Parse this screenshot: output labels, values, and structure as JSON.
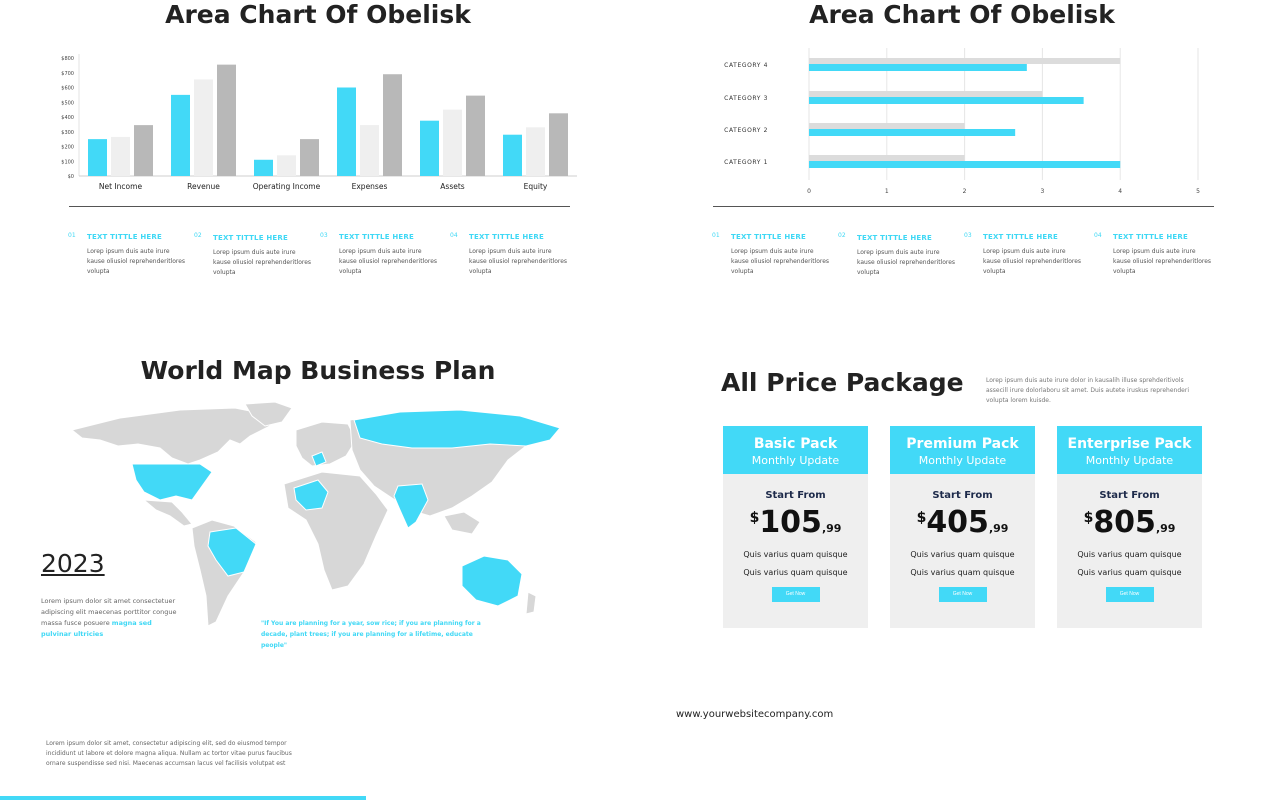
{
  "slide1": {
    "title": "Area Chart Of Obelisk",
    "items": [
      {
        "num": "01",
        "title": "TEXT TITTLE HERE",
        "text": "Lorep ipsum duis aute irure  kause  oliusiol reprehenderitlores volupta"
      },
      {
        "num": "02",
        "title": "TEXT TITTLE HERE",
        "text": "Lorep ipsum duis aute irure  kause  oliusiol reprehenderitlores volupta"
      },
      {
        "num": "03",
        "title": "TEXT TITTLE HERE",
        "text": "Lorep ipsum duis aute irure  kause  oliusiol reprehenderitlores volupta"
      },
      {
        "num": "04",
        "title": "TEXT TITTLE HERE",
        "text": "Lorep ipsum duis aute irure  kause  oliusiol reprehenderitlores volupta"
      }
    ]
  },
  "slide2": {
    "title": "Area Chart Of Obelisk",
    "items": [
      {
        "num": "01",
        "title": "TEXT TITTLE HERE",
        "text": "Lorep ipsum duis aute irure  kause  oliusiol reprehenderitlores volupta"
      },
      {
        "num": "02",
        "title": "TEXT TITTLE HERE",
        "text": "Lorep ipsum duis aute irure  kause  oliusiol reprehenderitlores volupta"
      },
      {
        "num": "03",
        "title": "TEXT TITTLE HERE",
        "text": "Lorep ipsum duis aute irure  kause  oliusiol reprehenderitlores volupta"
      },
      {
        "num": "04",
        "title": "TEXT TITTLE HERE",
        "text": "Lorep ipsum duis aute irure  kause  oliusiol reprehenderitlores volupta"
      }
    ]
  },
  "slide3": {
    "title": "World Map Business Plan",
    "year": "2023",
    "body": "Lorem ipsum dolor sit amet consectetuer adipiscing elit maecenas porttitor congue massa fusce posuere",
    "body_highlight": "magna sed pulvinar ultricies",
    "quote": "\"If You are planning for a year, sow rice; if you are planning for a decade, plant trees; if you are planning for a lifetime, educate people\"",
    "footer_text": "Lorem ipsum dolor sit amet, consectetur adipiscing elit, sed do eiusmod tempor incididunt ut labore et dolore magna aliqua. Nullam ac tortor vitae purus faucibus ornare suspendisse sed nisi. Maecenas accumsan lacus vel facilisis volutpat est"
  },
  "slide4": {
    "title": "All Price Package",
    "desc": "Lorep ipsum duis aute irure dolor in kausalih illuse sprehderitivols assecill irure dolorlaboru sit amet. Duis autete iruskus reprehenderi volupta lorem kuisde.",
    "website": "www.yourwebsitecompany.com",
    "packages": [
      {
        "name": "Basic Pack",
        "sub": "Monthly Update",
        "from": "Start From",
        "currency": "$",
        "price": "105",
        "cents": ",99",
        "features": [
          "Quis varius quam quisque",
          "Quis varius quam quisque"
        ],
        "button": "Get Now"
      },
      {
        "name": "Premium Pack",
        "sub": "Monthly Update",
        "from": "Start From",
        "currency": "$",
        "price": "405",
        "cents": ",99",
        "features": [
          "Quis varius quam quisque",
          "Quis varius quam quisque"
        ],
        "button": "Get Now"
      },
      {
        "name": "Enterprise Pack",
        "sub": "Monthly Update",
        "from": "Start From",
        "currency": "$",
        "price": "805",
        "cents": ",99",
        "features": [
          "Quis varius quam quisque",
          "Quis varius quam quisque"
        ],
        "button": "Get Now"
      }
    ]
  },
  "colors": {
    "accent": "#42d9f7",
    "light": "#efefef",
    "gray": "#b8b8b8",
    "dark": "#222222"
  },
  "chart_data": [
    {
      "type": "bar",
      "categories": [
        "Net Income",
        "Revenue",
        "Operating  Income",
        "Expenses",
        "Assets",
        "Equity"
      ],
      "y_ticks": [
        "$0",
        "$100",
        "$200",
        "$300",
        "$400",
        "$500",
        "$600",
        "$700",
        "$800"
      ],
      "ylim": [
        0,
        800
      ],
      "series": [
        {
          "color": "#42d9f7",
          "values": [
            250,
            550,
            110,
            600,
            375,
            280
          ]
        },
        {
          "color": "#efefef",
          "values": [
            265,
            655,
            140,
            345,
            450,
            330
          ]
        },
        {
          "color": "#b8b8b8",
          "values": [
            345,
            755,
            250,
            690,
            545,
            425
          ]
        }
      ]
    },
    {
      "type": "bar",
      "orientation": "horizontal",
      "categories": [
        "CATEGORY  1",
        "CATEGORY  2",
        "CATEGORY  3",
        "CATEGORY  4"
      ],
      "x_ticks": [
        "0",
        "1",
        "2",
        "3",
        "4",
        "5"
      ],
      "xlim": [
        0,
        5
      ],
      "series": [
        {
          "color": "#dcdcdc",
          "values": [
            2.0,
            2.0,
            3.0,
            4.0
          ]
        },
        {
          "color": "#42d9f7",
          "values": [
            4.0,
            2.65,
            3.53,
            2.8
          ]
        }
      ]
    }
  ]
}
